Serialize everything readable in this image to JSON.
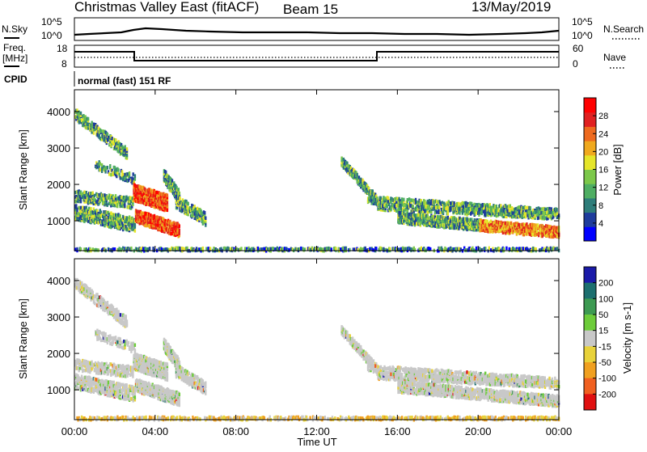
{
  "header": {
    "station": "Christmas Valley East (fitACF)",
    "beam": "Beam 15",
    "date": "13/May/2019"
  },
  "noise_panel": {
    "left_label": "N.Sky",
    "right_label": "N.Search",
    "left_ticks": [
      "10^5",
      "10^0"
    ],
    "right_ticks": [
      "10^5",
      "10^0"
    ]
  },
  "freq_panel": {
    "left_label_line1": "Freq.",
    "left_label_line2": "[MHz]",
    "right_label": "Nave",
    "left_ticks": [
      "18",
      "8"
    ],
    "right_ticks": [
      "60",
      "0"
    ]
  },
  "cpid_panel": {
    "label": "CPID",
    "text": "normal (fast) 151 RF"
  },
  "chart_data": [
    {
      "type": "heatmap",
      "title": "Power",
      "ylabel": "Slant Range [km]",
      "ylim": [
        180,
        4600
      ],
      "yticks": [
        "1000",
        "2000",
        "3000",
        "4000"
      ],
      "xlim": [
        "00:00",
        "24:00"
      ],
      "colorbar": {
        "label": "Power [dB]",
        "ticks": [
          "4",
          "8",
          "12",
          "16",
          "20",
          "24",
          "28"
        ],
        "colors": [
          "#0000ff",
          "#1e3c9c",
          "#2e7d7a",
          "#4fae63",
          "#7cc84a",
          "#e5e52a",
          "#f0a91e",
          "#ee6a1e",
          "#e02020",
          "#ff0000"
        ]
      }
    },
    {
      "type": "heatmap",
      "title": "Velocity",
      "ylabel": "Slant Range [km]",
      "ylim": [
        180,
        4600
      ],
      "yticks": [
        "1000",
        "2000",
        "3000",
        "4000"
      ],
      "xlim": [
        "00:00",
        "24:00"
      ],
      "colorbar": {
        "label": "Velocity [m s-1]",
        "ticks": [
          "200",
          "100",
          "50",
          "15",
          "-15",
          "-50",
          "-100",
          "-200"
        ],
        "colors": [
          "#1a1aa8",
          "#1c6f6f",
          "#3d9a52",
          "#6dcc3a",
          "#c8c8c8",
          "#e8d23a",
          "#f0a020",
          "#f06020",
          "#e01010"
        ]
      }
    }
  ],
  "xaxis": {
    "ticks": [
      "00:00",
      "04:00",
      "08:00",
      "12:00",
      "16:00",
      "20:00",
      "00:00"
    ],
    "label": "Time UT"
  }
}
